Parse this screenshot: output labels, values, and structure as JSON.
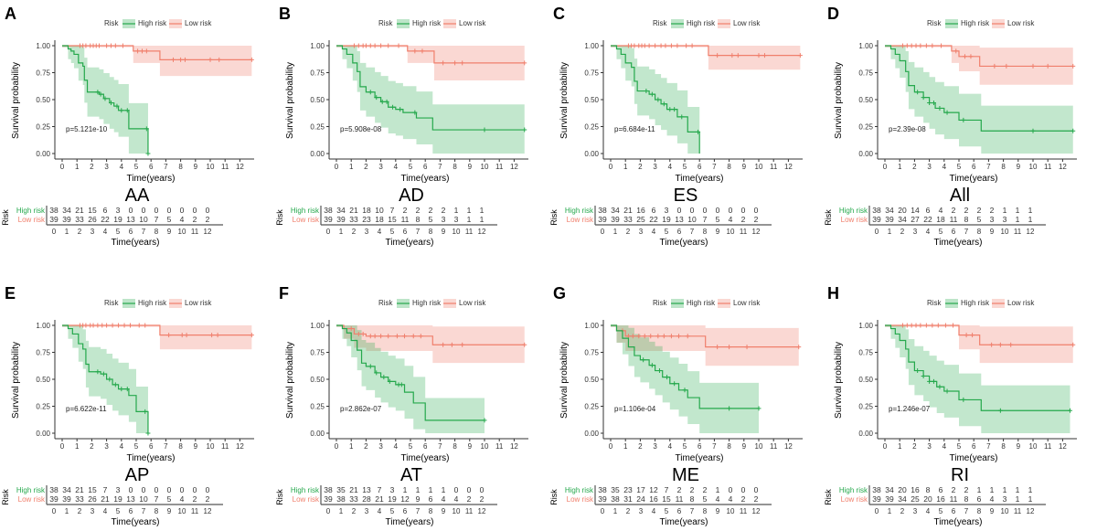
{
  "colors": {
    "high": "#25A84C",
    "low": "#F07F6C"
  },
  "legend": {
    "title": "Risk",
    "high": "High risk",
    "low": "Low risk"
  },
  "axis": {
    "ylabel": "Survival probability",
    "xlabel": "Time(years)",
    "yticks": [
      "0.00",
      "0.25",
      "0.50",
      "0.75",
      "1.00"
    ],
    "xticks": [
      0,
      1,
      2,
      3,
      4,
      5,
      6,
      7,
      8,
      9,
      10,
      11,
      12
    ],
    "xlim": [
      0,
      12.9
    ],
    "ylim": [
      0,
      1
    ]
  },
  "table": {
    "ylabel": "Risk",
    "high": "High risk",
    "low": "Low risk"
  },
  "chart_data": [
    {
      "type": "line",
      "letter": "A",
      "title": "AA",
      "p": "p=5.121e-10",
      "high": {
        "steps": [
          [
            0,
            1
          ],
          [
            0.4,
            0.97
          ],
          [
            0.6,
            0.95
          ],
          [
            0.8,
            0.92
          ],
          [
            1.1,
            0.84
          ],
          [
            1.4,
            0.81
          ],
          [
            1.5,
            0.68
          ],
          [
            1.7,
            0.57
          ],
          [
            2.5,
            0.55
          ],
          [
            2.8,
            0.51
          ],
          [
            3.2,
            0.47
          ],
          [
            3.5,
            0.44
          ],
          [
            3.8,
            0.4
          ],
          [
            4.5,
            0.23
          ],
          [
            5.8,
            0
          ]
        ],
        "end": 5.8,
        "censor": [
          2.4,
          2.6,
          2.9,
          3.3,
          3.7,
          4.0,
          4.4,
          5.7,
          5.8
        ]
      },
      "low": {
        "steps": [
          [
            0,
            1
          ],
          [
            4.8,
            0.95
          ],
          [
            6.6,
            0.87
          ]
        ],
        "end": 12.8,
        "censor": [
          1.2,
          1.4,
          1.6,
          1.9,
          2.1,
          2.3,
          2.5,
          3.0,
          3.3,
          3.6,
          4.1,
          5.1,
          5.4,
          5.7,
          7.5,
          8.0,
          8.3,
          10.0,
          10.6,
          12.8
        ]
      },
      "risk_high": [
        38,
        34,
        21,
        15,
        6,
        3,
        0,
        0,
        0,
        0,
        0,
        0,
        0
      ],
      "risk_low": [
        39,
        39,
        33,
        26,
        22,
        19,
        13,
        10,
        7,
        5,
        4,
        2,
        2
      ]
    },
    {
      "type": "line",
      "letter": "B",
      "title": "AD",
      "p": "p=5.908e-08",
      "high": {
        "steps": [
          [
            0,
            1
          ],
          [
            0.4,
            0.97
          ],
          [
            0.7,
            0.92
          ],
          [
            1.1,
            0.84
          ],
          [
            1.4,
            0.76
          ],
          [
            1.6,
            0.62
          ],
          [
            2.0,
            0.57
          ],
          [
            2.6,
            0.52
          ],
          [
            3.0,
            0.48
          ],
          [
            3.5,
            0.43
          ],
          [
            4.0,
            0.41
          ],
          [
            4.5,
            0.38
          ],
          [
            5.4,
            0.33
          ],
          [
            6.5,
            0.22
          ]
        ],
        "end": 12.7,
        "censor": [
          2.3,
          2.7,
          3.1,
          3.4,
          3.8,
          4.3,
          5.3,
          10.0,
          12.7
        ]
      },
      "low": {
        "steps": [
          [
            0,
            1
          ],
          [
            4.8,
            0.95
          ],
          [
            6.6,
            0.84
          ]
        ],
        "end": 12.7,
        "censor": [
          1.2,
          1.5,
          1.8,
          2.0,
          2.3,
          2.6,
          3.0,
          3.5,
          4.2,
          5.3,
          5.8,
          7.2,
          8.0,
          8.5,
          12.7
        ]
      },
      "risk_high": [
        38,
        34,
        21,
        18,
        10,
        7,
        2,
        2,
        2,
        2,
        1,
        1,
        1
      ],
      "risk_low": [
        39,
        39,
        33,
        23,
        18,
        15,
        11,
        8,
        5,
        3,
        3,
        1,
        1
      ]
    },
    {
      "type": "line",
      "letter": "C",
      "title": "ES",
      "p": "p=6.684e-11",
      "high": {
        "steps": [
          [
            0,
            1
          ],
          [
            0.4,
            0.97
          ],
          [
            0.7,
            0.92
          ],
          [
            1.0,
            0.84
          ],
          [
            1.4,
            0.8
          ],
          [
            1.6,
            0.67
          ],
          [
            1.8,
            0.58
          ],
          [
            2.6,
            0.55
          ],
          [
            3.0,
            0.5
          ],
          [
            3.4,
            0.46
          ],
          [
            3.8,
            0.41
          ],
          [
            4.5,
            0.34
          ],
          [
            5.2,
            0.2
          ],
          [
            6.0,
            0
          ]
        ],
        "end": 6.0,
        "censor": [
          2.4,
          2.8,
          3.2,
          3.6,
          4.0,
          4.3,
          4.8,
          5.9
        ]
      },
      "low": {
        "steps": [
          [
            0,
            1
          ],
          [
            6.6,
            0.91
          ]
        ],
        "end": 12.8,
        "censor": [
          1.2,
          1.4,
          1.6,
          1.9,
          2.1,
          2.3,
          2.6,
          3.0,
          3.4,
          3.7,
          4.1,
          4.5,
          5.1,
          5.5,
          7.2,
          8.2,
          8.6,
          10.0,
          10.4,
          12.8
        ]
      },
      "risk_high": [
        38,
        34,
        21,
        16,
        6,
        3,
        0,
        0,
        0,
        0,
        0,
        0,
        0
      ],
      "risk_low": [
        39,
        39,
        33,
        25,
        22,
        19,
        13,
        10,
        7,
        5,
        4,
        2,
        2
      ]
    },
    {
      "type": "line",
      "letter": "D",
      "title": "All",
      "p": "p=2.39e-08",
      "high": {
        "steps": [
          [
            0,
            1
          ],
          [
            0.4,
            0.97
          ],
          [
            0.7,
            0.92
          ],
          [
            1.0,
            0.86
          ],
          [
            1.4,
            0.76
          ],
          [
            1.6,
            0.63
          ],
          [
            2.0,
            0.57
          ],
          [
            2.6,
            0.52
          ],
          [
            3.0,
            0.47
          ],
          [
            3.4,
            0.42
          ],
          [
            4.0,
            0.38
          ],
          [
            5.0,
            0.31
          ],
          [
            6.5,
            0.21
          ]
        ],
        "end": 12.7,
        "censor": [
          2.2,
          2.6,
          3.0,
          3.3,
          3.7,
          4.2,
          5.3,
          10.0,
          12.7
        ]
      },
      "low": {
        "steps": [
          [
            0,
            1
          ],
          [
            4.5,
            0.95
          ],
          [
            5.0,
            0.9
          ],
          [
            6.4,
            0.81
          ]
        ],
        "end": 12.7,
        "censor": [
          1.2,
          1.5,
          1.8,
          2.1,
          2.4,
          2.8,
          3.2,
          3.8,
          4.8,
          5.4,
          5.8,
          7.4,
          8.2,
          10.0,
          11.0,
          12.7
        ]
      },
      "risk_high": [
        38,
        34,
        20,
        14,
        6,
        4,
        2,
        2,
        2,
        2,
        1,
        1,
        1
      ],
      "risk_low": [
        39,
        39,
        34,
        27,
        22,
        18,
        11,
        8,
        5,
        3,
        3,
        1,
        1
      ]
    },
    {
      "type": "line",
      "letter": "E",
      "title": "AP",
      "p": "p=6.622e-11",
      "high": {
        "steps": [
          [
            0,
            1
          ],
          [
            0.4,
            0.97
          ],
          [
            0.7,
            0.92
          ],
          [
            1.1,
            0.83
          ],
          [
            1.4,
            0.78
          ],
          [
            1.6,
            0.64
          ],
          [
            1.8,
            0.57
          ],
          [
            2.6,
            0.55
          ],
          [
            3.0,
            0.5
          ],
          [
            3.4,
            0.45
          ],
          [
            3.8,
            0.41
          ],
          [
            4.5,
            0.35
          ],
          [
            5.0,
            0.2
          ],
          [
            5.8,
            0
          ]
        ],
        "end": 5.8,
        "censor": [
          2.4,
          2.8,
          3.2,
          3.6,
          4.0,
          4.4,
          5.6,
          5.8
        ]
      },
      "low": {
        "steps": [
          [
            0,
            1
          ],
          [
            6.6,
            0.91
          ]
        ],
        "end": 12.8,
        "censor": [
          1.2,
          1.4,
          1.6,
          1.9,
          2.1,
          2.4,
          2.7,
          3.0,
          3.4,
          3.8,
          4.2,
          4.6,
          5.2,
          5.6,
          7.2,
          8.1,
          8.4,
          10.1,
          10.5,
          12.8
        ]
      },
      "risk_high": [
        38,
        34,
        21,
        15,
        7,
        3,
        0,
        0,
        0,
        0,
        0,
        0,
        0
      ],
      "risk_low": [
        39,
        39,
        33,
        26,
        21,
        19,
        13,
        10,
        7,
        5,
        4,
        2,
        2
      ]
    },
    {
      "type": "line",
      "letter": "F",
      "title": "AT",
      "p": "p=2.862e-07",
      "high": {
        "steps": [
          [
            0,
            1
          ],
          [
            0.4,
            0.97
          ],
          [
            0.7,
            0.93
          ],
          [
            1.0,
            0.86
          ],
          [
            1.4,
            0.77
          ],
          [
            1.7,
            0.65
          ],
          [
            2.0,
            0.62
          ],
          [
            2.6,
            0.56
          ],
          [
            3.0,
            0.52
          ],
          [
            3.5,
            0.48
          ],
          [
            4.0,
            0.45
          ],
          [
            4.6,
            0.38
          ],
          [
            5.2,
            0.28
          ],
          [
            6.0,
            0.12
          ]
        ],
        "end": 10.0,
        "censor": [
          2.3,
          2.7,
          3.2,
          3.6,
          4.2,
          4.4,
          10.0
        ]
      },
      "low": {
        "steps": [
          [
            0,
            1
          ],
          [
            0.5,
            0.97
          ],
          [
            1.2,
            0.92
          ],
          [
            2.0,
            0.9
          ],
          [
            6.5,
            0.82
          ]
        ],
        "end": 12.7,
        "censor": [
          1.0,
          1.5,
          1.8,
          2.3,
          2.6,
          3.0,
          3.5,
          4.1,
          4.6,
          5.2,
          5.7,
          7.2,
          7.8,
          8.5,
          12.7
        ]
      },
      "risk_high": [
        38,
        35,
        21,
        13,
        7,
        3,
        1,
        1,
        1,
        1,
        0,
        0,
        0
      ],
      "risk_low": [
        39,
        38,
        33,
        28,
        21,
        19,
        12,
        9,
        6,
        4,
        4,
        2,
        2
      ]
    },
    {
      "type": "line",
      "letter": "G",
      "title": "ME",
      "p": "p=1.106e-04",
      "high": {
        "steps": [
          [
            0,
            1
          ],
          [
            0.4,
            0.95
          ],
          [
            0.8,
            0.88
          ],
          [
            1.2,
            0.8
          ],
          [
            1.6,
            0.72
          ],
          [
            2.0,
            0.68
          ],
          [
            2.6,
            0.63
          ],
          [
            3.0,
            0.58
          ],
          [
            3.5,
            0.52
          ],
          [
            4.0,
            0.46
          ],
          [
            4.6,
            0.4
          ],
          [
            5.2,
            0.33
          ],
          [
            6.0,
            0.23
          ]
        ],
        "end": 10.0,
        "censor": [
          2.2,
          2.8,
          3.3,
          3.8,
          4.3,
          5.0,
          8.0,
          10.0
        ]
      },
      "low": {
        "steps": [
          [
            0,
            1
          ],
          [
            0.4,
            0.95
          ],
          [
            1.0,
            0.9
          ],
          [
            6.4,
            0.8
          ]
        ],
        "end": 12.7,
        "censor": [
          0.8,
          1.2,
          1.5,
          1.9,
          2.3,
          2.7,
          3.2,
          3.6,
          4.1,
          4.6,
          5.2,
          7.2,
          8.0,
          9.2,
          12.7
        ]
      },
      "risk_high": [
        38,
        35,
        23,
        17,
        12,
        7,
        2,
        2,
        2,
        1,
        0,
        0,
        0
      ],
      "risk_low": [
        39,
        38,
        31,
        24,
        16,
        15,
        11,
        8,
        5,
        4,
        4,
        2,
        2
      ]
    },
    {
      "type": "line",
      "letter": "H",
      "title": "RI",
      "p": "p=1.246e-07",
      "high": {
        "steps": [
          [
            0,
            1
          ],
          [
            0.4,
            0.97
          ],
          [
            0.7,
            0.92
          ],
          [
            1.0,
            0.86
          ],
          [
            1.4,
            0.78
          ],
          [
            1.6,
            0.66
          ],
          [
            2.0,
            0.58
          ],
          [
            2.6,
            0.53
          ],
          [
            3.0,
            0.48
          ],
          [
            3.5,
            0.43
          ],
          [
            4.0,
            0.39
          ],
          [
            5.0,
            0.31
          ],
          [
            6.5,
            0.21
          ]
        ],
        "end": 12.5,
        "censor": [
          2.2,
          2.6,
          3.0,
          3.3,
          3.7,
          4.2,
          5.3,
          7.8,
          12.5
        ]
      },
      "low": {
        "steps": [
          [
            0,
            1
          ],
          [
            5.0,
            0.91
          ],
          [
            6.4,
            0.82
          ]
        ],
        "end": 12.7,
        "censor": [
          1.2,
          1.5,
          1.8,
          2.1,
          2.4,
          2.8,
          3.2,
          3.6,
          4.1,
          4.6,
          5.5,
          5.9,
          7.2,
          7.8,
          8.5,
          12.7
        ]
      },
      "risk_high": [
        38,
        34,
        20,
        16,
        8,
        6,
        2,
        2,
        1,
        1,
        1,
        1,
        1
      ],
      "risk_low": [
        39,
        39,
        34,
        25,
        20,
        16,
        11,
        8,
        6,
        4,
        3,
        1,
        1
      ]
    }
  ]
}
